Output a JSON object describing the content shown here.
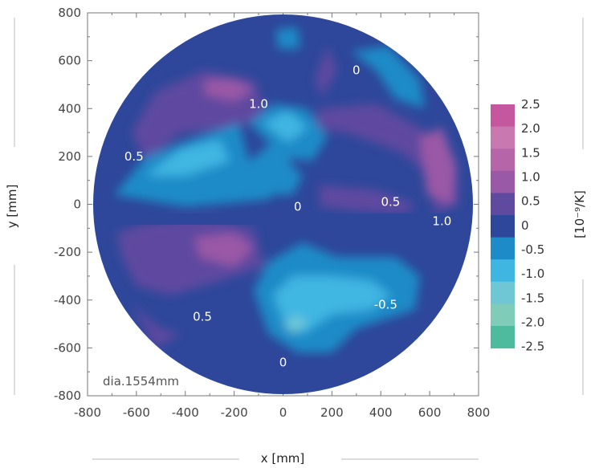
{
  "chart_data": {
    "type": "heatmap",
    "title": "",
    "xlabel": "x [mm]",
    "ylabel": "y [mm]",
    "xlim": [
      -800,
      800
    ],
    "ylim": [
      -800,
      800
    ],
    "x_ticks": [
      "-800",
      "-600",
      "-400",
      "-200",
      "0",
      "200",
      "400",
      "600",
      "800"
    ],
    "y_ticks": [
      "-800",
      "-600",
      "-400",
      "-200",
      "0",
      "200",
      "400",
      "600",
      "800"
    ],
    "annotation": "dia.1554mm",
    "diameter_mm": 1554,
    "colorbar": {
      "unit": "[10⁻⁹/K]",
      "levels": [
        {
          "label": "2.5",
          "color": "#c4579e"
        },
        {
          "label": "2.0",
          "color": "#c979b0"
        },
        {
          "label": "1.5",
          "color": "#b666a8"
        },
        {
          "label": "1.0",
          "color": "#9a59a6"
        },
        {
          "label": "0.5",
          "color": "#5f4aa0"
        },
        {
          "label": "0",
          "color": "#2e479a"
        },
        {
          "label": "-0.5",
          "color": "#1c8bc8"
        },
        {
          "label": "-1.0",
          "color": "#3fb6e2"
        },
        {
          "label": "-1.5",
          "color": "#6fc7d6"
        },
        {
          "label": "-2.0",
          "color": "#7fcdb8"
        },
        {
          "label": "-2.5",
          "color": "#4fbb9e"
        }
      ]
    },
    "contour_labels": [
      {
        "text": "1.0",
        "x": -100,
        "y": 420
      },
      {
        "text": "0",
        "x": 300,
        "y": 560
      },
      {
        "text": "0.5",
        "x": -610,
        "y": 200
      },
      {
        "text": "0",
        "x": 60,
        "y": -10
      },
      {
        "text": "0.5",
        "x": 440,
        "y": 10
      },
      {
        "text": "1.0",
        "x": 650,
        "y": -70
      },
      {
        "text": "-0.5",
        "x": 420,
        "y": -420
      },
      {
        "text": "0.5",
        "x": -330,
        "y": -470
      },
      {
        "text": "0",
        "x": 0,
        "y": -660
      }
    ],
    "regions": [
      {
        "level": "0.5",
        "points": [
          [
            -620,
            300
          ],
          [
            -520,
            470
          ],
          [
            -320,
            560
          ],
          [
            -120,
            520
          ],
          [
            -60,
            360
          ],
          [
            -220,
            320
          ],
          [
            -420,
            300
          ],
          [
            -560,
            180
          ]
        ]
      },
      {
        "level": "1.0",
        "points": [
          [
            -320,
            520
          ],
          [
            -200,
            520
          ],
          [
            -120,
            480
          ],
          [
            -200,
            430
          ],
          [
            -320,
            460
          ]
        ]
      },
      {
        "level": "0.5",
        "points": [
          [
            130,
            520
          ],
          [
            180,
            660
          ],
          [
            220,
            560
          ],
          [
            160,
            450
          ]
        ]
      },
      {
        "level": "-0.5",
        "points": [
          [
            280,
            640
          ],
          [
            430,
            660
          ],
          [
            560,
            520
          ],
          [
            580,
            400
          ],
          [
            460,
            440
          ],
          [
            380,
            560
          ]
        ]
      },
      {
        "level": "0.5",
        "points": [
          [
            150,
            400
          ],
          [
            380,
            420
          ],
          [
            560,
            320
          ],
          [
            700,
            200
          ],
          [
            720,
            0
          ],
          [
            620,
            -40
          ],
          [
            600,
            120
          ],
          [
            480,
            220
          ],
          [
            260,
            300
          ],
          [
            120,
            320
          ]
        ]
      },
      {
        "level": "1.0",
        "points": [
          [
            560,
            280
          ],
          [
            650,
            320
          ],
          [
            710,
            150
          ],
          [
            690,
            0
          ],
          [
            590,
            40
          ]
        ]
      },
      {
        "level": "0.5",
        "points": [
          [
            150,
            80
          ],
          [
            380,
            60
          ],
          [
            540,
            0
          ],
          [
            500,
            -40
          ],
          [
            330,
            -30
          ],
          [
            150,
            -10
          ]
        ]
      },
      {
        "level": "-0.5",
        "points": [
          [
            -690,
            40
          ],
          [
            -560,
            200
          ],
          [
            -300,
            300
          ],
          [
            -180,
            340
          ],
          [
            -140,
            180
          ],
          [
            -40,
            260
          ],
          [
            40,
            240
          ],
          [
            20,
            120
          ],
          [
            -60,
            20
          ],
          [
            -400,
            -10
          ]
        ]
      },
      {
        "level": "-1.0",
        "points": [
          [
            -560,
            120
          ],
          [
            -420,
            230
          ],
          [
            -260,
            270
          ],
          [
            -220,
            180
          ],
          [
            -400,
            120
          ]
        ]
      },
      {
        "level": "-0.5",
        "points": [
          [
            -140,
            340
          ],
          [
            -40,
            420
          ],
          [
            100,
            400
          ],
          [
            180,
            280
          ],
          [
            120,
            180
          ],
          [
            0,
            200
          ]
        ]
      },
      {
        "level": "-1.0",
        "points": [
          [
            -80,
            340
          ],
          [
            20,
            390
          ],
          [
            100,
            320
          ],
          [
            20,
            260
          ]
        ]
      },
      {
        "level": "-0.5",
        "points": [
          [
            -120,
            120
          ],
          [
            20,
            180
          ],
          [
            80,
            120
          ],
          [
            40,
            40
          ],
          [
            -60,
            40
          ]
        ]
      },
      {
        "level": "-0.5",
        "points": [
          [
            -20,
            650
          ],
          [
            -30,
            730
          ],
          [
            60,
            740
          ],
          [
            70,
            650
          ]
        ]
      },
      {
        "level": "0.5",
        "points": [
          [
            -680,
            -120
          ],
          [
            -560,
            -80
          ],
          [
            -320,
            -60
          ],
          [
            -120,
            -100
          ],
          [
            -80,
            -260
          ],
          [
            -260,
            -320
          ],
          [
            -460,
            -380
          ],
          [
            -600,
            -340
          ],
          [
            -660,
            -220
          ]
        ]
      },
      {
        "level": "1.0",
        "points": [
          [
            -360,
            -140
          ],
          [
            -200,
            -120
          ],
          [
            -120,
            -180
          ],
          [
            -200,
            -260
          ],
          [
            -340,
            -220
          ]
        ]
      },
      {
        "level": "0.5",
        "points": [
          [
            -620,
            -420
          ],
          [
            -500,
            -520
          ],
          [
            -420,
            -540
          ],
          [
            -520,
            -600
          ]
        ]
      },
      {
        "level": "-0.5",
        "points": [
          [
            -120,
            -360
          ],
          [
            -60,
            -240
          ],
          [
            80,
            -160
          ],
          [
            220,
            -220
          ],
          [
            460,
            -220
          ],
          [
            560,
            -300
          ],
          [
            540,
            -440
          ],
          [
            420,
            -480
          ],
          [
            300,
            -520
          ],
          [
            200,
            -620
          ],
          [
            60,
            -620
          ],
          [
            -60,
            -540
          ]
        ]
      },
      {
        "level": "-1.0",
        "points": [
          [
            -40,
            -380
          ],
          [
            40,
            -300
          ],
          [
            200,
            -300
          ],
          [
            360,
            -320
          ],
          [
            440,
            -380
          ],
          [
            360,
            -440
          ],
          [
            200,
            -460
          ],
          [
            80,
            -540
          ],
          [
            0,
            -480
          ]
        ]
      },
      {
        "level": "-1.5",
        "points": [
          [
            0,
            -500
          ],
          [
            60,
            -460
          ],
          [
            100,
            -500
          ],
          [
            40,
            -540
          ]
        ]
      }
    ]
  }
}
